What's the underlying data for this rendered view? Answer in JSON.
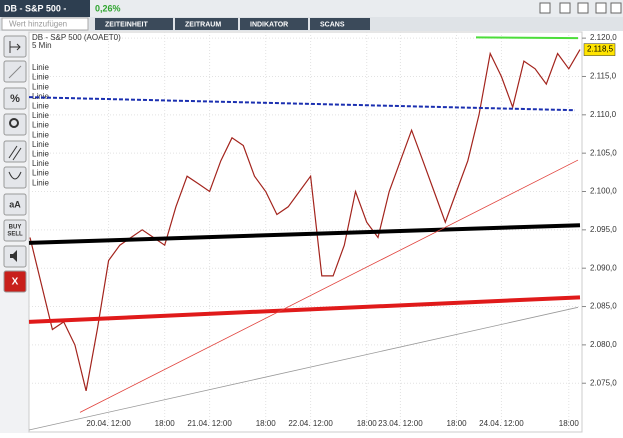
{
  "header": {
    "title": "DB - S&P 500 -",
    "change": "0,26%",
    "search_placeholder": "Wert hinzufügen",
    "tabs": [
      "ZEITEINHEIT",
      "ZEITRAUM",
      "INDIKATOR",
      "SCANS"
    ]
  },
  "toolbar": {
    "text_button": "aA",
    "trade_button": [
      "BUY",
      "SELL"
    ],
    "close_button": "X"
  },
  "chart_data": {
    "type": "line",
    "title": "DB - S&P 500 (AOAET0)",
    "subtitle": "5 Min",
    "annotations": [
      "Linie",
      "Linie",
      "Linie",
      "Linie",
      "Linie",
      "Linie",
      "Linie",
      "Linie",
      "Linie",
      "Linie",
      "Linie",
      "Linie",
      "Linie"
    ],
    "categories": [
      null,
      null,
      null,
      null,
      null,
      null,
      null,
      "20.04. 12:00",
      null,
      null,
      null,
      null,
      "18:00",
      null,
      null,
      null,
      "21.04. 12:00",
      null,
      null,
      null,
      null,
      "18:00",
      null,
      null,
      null,
      "22.04. 12:00",
      null,
      null,
      null,
      null,
      "18:00",
      null,
      null,
      "23.04. 12:00",
      null,
      null,
      null,
      null,
      "18:00",
      null,
      null,
      null,
      "24.04. 12:00",
      null,
      null,
      null,
      null,
      null,
      "18:00",
      null
    ],
    "series": [
      {
        "color": "#a3241d",
        "values": [
          2094,
          2088,
          2082,
          2083,
          2080,
          2074,
          2082,
          2091,
          2093,
          2094,
          2095,
          2094,
          2093,
          2098,
          2102,
          2101,
          2100,
          2104,
          2107,
          2106,
          2102,
          2100,
          2097,
          2098,
          2100,
          2102,
          2089,
          2089,
          2093,
          2100,
          2096,
          2094,
          2100,
          2104,
          2108,
          2104,
          2100,
          2096,
          2100,
          2104,
          2110,
          2118,
          2115,
          2111,
          2117,
          2116,
          2114,
          2118,
          2116,
          2118.5
        ]
      }
    ],
    "last_value": 2118.5,
    "last_value_label": "2.118,5",
    "lines": [
      {
        "color": "#1a2fb0",
        "dashed": true,
        "weight": "medium",
        "start": 2112.3,
        "end": 2110.6
      },
      {
        "color": "#4ddd3a",
        "dashed": false,
        "weight": "medium",
        "start": 2120.1,
        "end": 2120
      },
      {
        "color": "#000000",
        "dashed": false,
        "weight": "thick",
        "start": 2093.3,
        "end": 2095.6
      },
      {
        "color": "#e01a1a",
        "dashed": false,
        "weight": "thick",
        "start": 2083,
        "end": 2086.2
      },
      {
        "color": "#e0403a",
        "dashed": false,
        "weight": "thin",
        "start": 2071.2,
        "end": 2104.1
      },
      {
        "color": "#999999",
        "dashed": false,
        "weight": "thin",
        "start": 2068.9,
        "end": 2084.9
      }
    ],
    "ylim": [
      2068.9,
      2120.8
    ],
    "yticks": [
      {
        "value": 2075,
        "label": "2.075,0"
      },
      {
        "value": 2080,
        "label": "2.080,0"
      },
      {
        "value": 2085,
        "label": "2.085,0"
      },
      {
        "value": 2090,
        "label": "2.090,0"
      },
      {
        "value": 2095,
        "label": "2.095,0"
      },
      {
        "value": 2100,
        "label": "2.100,0"
      },
      {
        "value": 2105,
        "label": "2.105,0"
      },
      {
        "value": 2110,
        "label": "2.110,0"
      },
      {
        "value": 2115,
        "label": "2.115,0"
      },
      {
        "value": 2120,
        "label": "2.120,0"
      }
    ],
    "grid": true
  }
}
